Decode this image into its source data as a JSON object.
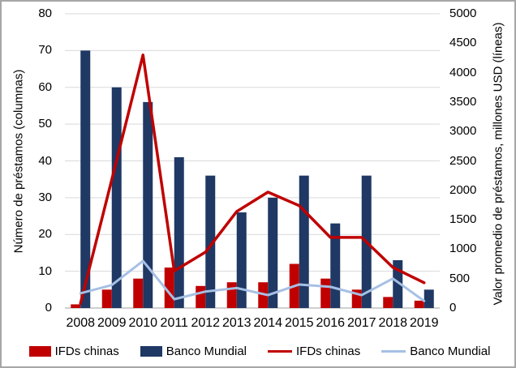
{
  "chart_data": {
    "type": "bar",
    "subtype": "combo-bar-line-dual-axis",
    "categories": [
      "2008",
      "2009",
      "2010",
      "2011",
      "2012",
      "2013",
      "2014",
      "2015",
      "2016",
      "2017",
      "2018",
      "2019"
    ],
    "series": [
      {
        "name": "IFDs chinas",
        "kind": "bar",
        "axis": "left",
        "color": "#C00000",
        "values": [
          1,
          5,
          8,
          11,
          6,
          7,
          7,
          12,
          8,
          5,
          3,
          2
        ]
      },
      {
        "name": "Banco Mundial",
        "kind": "bar",
        "axis": "left",
        "color": "#1F3864",
        "values": [
          70,
          60,
          56,
          41,
          36,
          26,
          30,
          36,
          23,
          36,
          13,
          5
        ]
      },
      {
        "name": "IFDs chinas",
        "kind": "line",
        "axis": "right",
        "color": "#C00000",
        "values": [
          80,
          2180,
          4300,
          630,
          950,
          1640,
          1970,
          1740,
          1200,
          1200,
          690,
          430
        ]
      },
      {
        "name": "Banco Mundial",
        "kind": "line",
        "axis": "right",
        "color": "#A6C0E4",
        "values": [
          250,
          390,
          800,
          150,
          280,
          340,
          220,
          400,
          360,
          220,
          500,
          120
        ]
      }
    ],
    "axes": {
      "left": {
        "title": "Número de préstamos (columnas)",
        "min": 0,
        "max": 80,
        "ticks": [
          0,
          10,
          20,
          30,
          40,
          50,
          60,
          70,
          80
        ]
      },
      "right": {
        "title": "Valor promedio de préstamos, millones USD (líneas)",
        "min": 0,
        "max": 5000,
        "ticks": [
          0,
          500,
          1000,
          1500,
          2000,
          2500,
          3000,
          3500,
          4000,
          4500,
          5000
        ]
      }
    },
    "grid": true,
    "legend_position": "bottom",
    "legend": [
      {
        "label": "IFDs chinas",
        "swatch": "bar",
        "color": "#C00000"
      },
      {
        "label": "Banco Mundial",
        "swatch": "bar",
        "color": "#1F3864"
      },
      {
        "label": "IFDs chinas",
        "swatch": "line",
        "color": "#C00000"
      },
      {
        "label": "Banco Mundial",
        "swatch": "line",
        "color": "#A6C0E4"
      }
    ]
  },
  "colors": {
    "gridline": "#D9D9D9",
    "axis_line": "#BFBFBF",
    "frame": "#A6A6A6",
    "bar_red": "#C00000",
    "bar_navy": "#1F3864",
    "line_red": "#C00000",
    "line_lightblue": "#A6C0E4"
  }
}
